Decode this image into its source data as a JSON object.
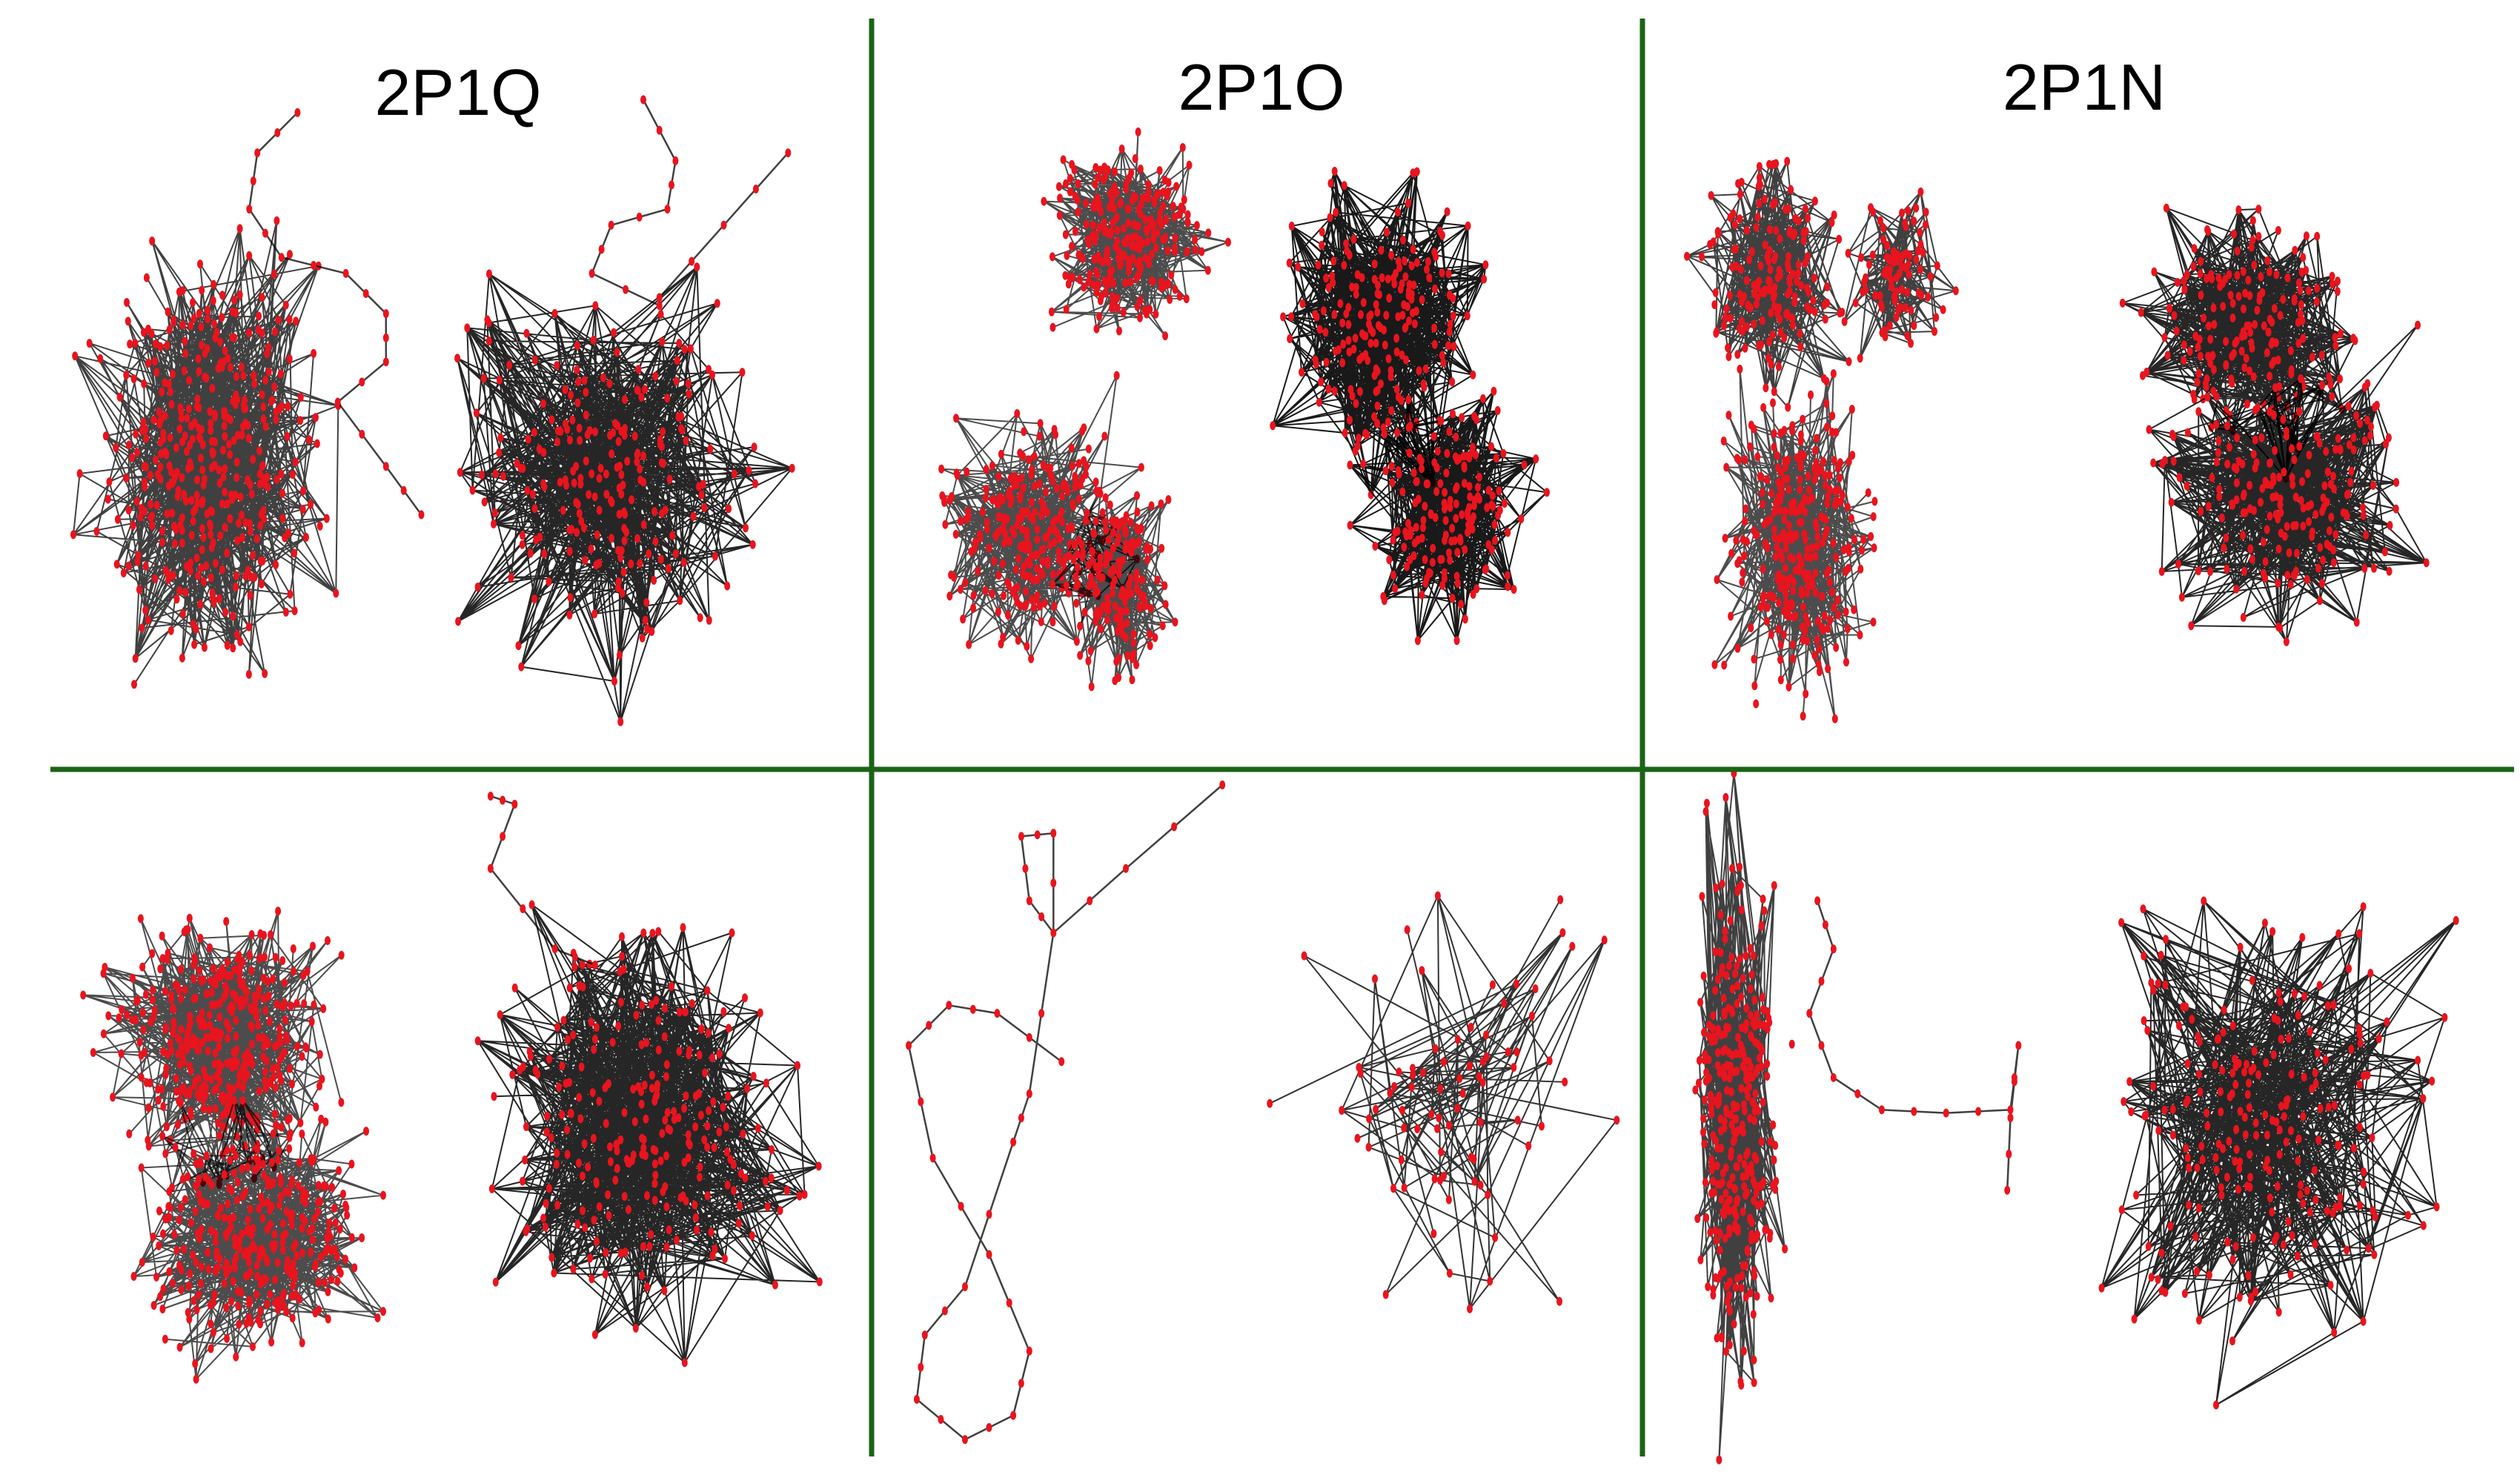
{
  "panels": [
    {
      "title": "2P1Q"
    },
    {
      "title": "2P1O"
    },
    {
      "title": "2P1N"
    }
  ]
}
